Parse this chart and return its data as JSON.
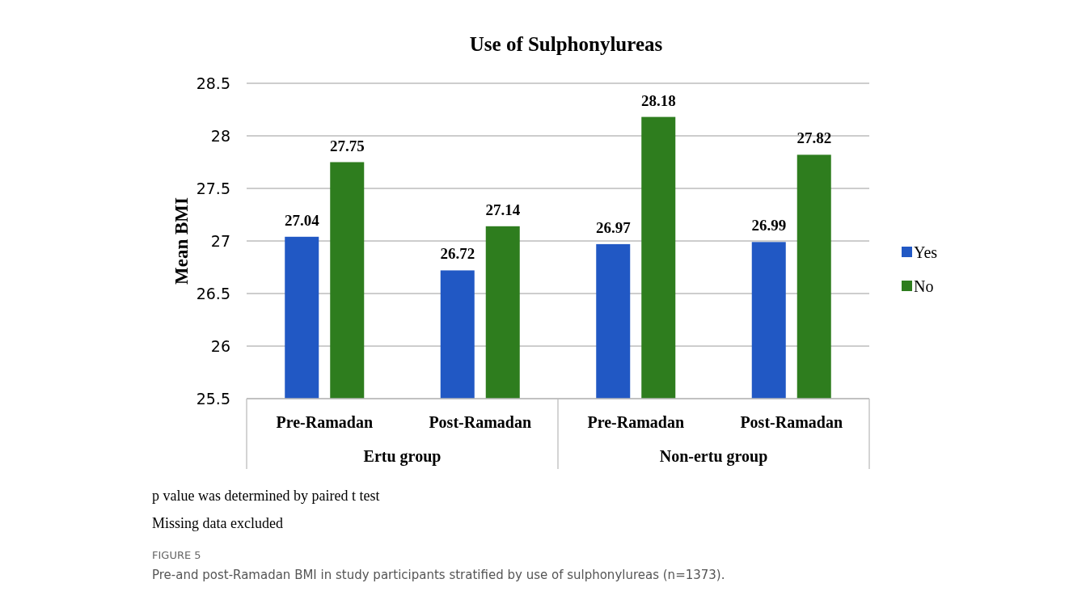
{
  "chart_data": {
    "type": "bar",
    "title": "Use of Sulphonylureas",
    "ylabel": "Mean  BMI",
    "categories": [
      "Pre-Ramadan",
      "Post-Ramadan",
      "Pre-Ramadan",
      "Post-Ramadan"
    ],
    "series": [
      {
        "name": "Yes",
        "color": "#2158c4",
        "values": [
          27.04,
          26.72,
          26.97,
          26.99
        ]
      },
      {
        "name": "No",
        "color": "#2e7d1e",
        "values": [
          27.75,
          27.14,
          28.18,
          27.82
        ]
      }
    ],
    "ylim": [
      25.5,
      28.5
    ],
    "yticks": [
      25.5,
      26,
      26.5,
      27,
      27.5,
      28,
      28.5
    ],
    "grid": "y",
    "legend": "right",
    "data_labels": true,
    "annotations": [
      "Ertu group",
      "Non-ertu group",
      "p value was determined by paired t test",
      "Missing data excluded",
      "FIGURE 5",
      "Pre-and post-Ramadan BMI in study participants stratified by use of sulphonylureas (n=1373)."
    ]
  }
}
